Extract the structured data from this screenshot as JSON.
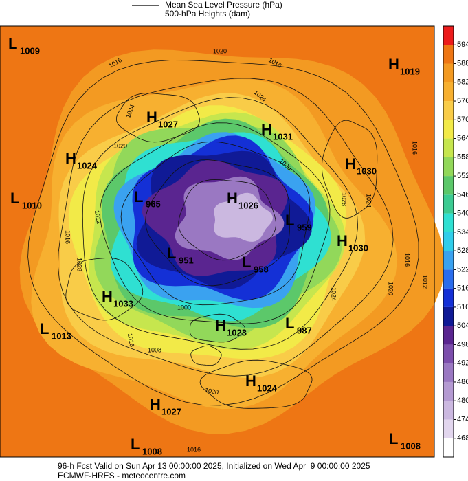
{
  "legend": {
    "pressure": "Mean Sea Level Pressure (hPa)",
    "heights": "500-hPa Heights (dam)"
  },
  "centers": [
    {
      "letter": "H",
      "value": 1019
    },
    {
      "letter": "L",
      "value": 1009
    },
    {
      "letter": "H",
      "value": 1027
    },
    {
      "letter": "H",
      "value": 1031
    },
    {
      "letter": "H",
      "value": 1024
    },
    {
      "letter": "H",
      "value": 1030
    },
    {
      "letter": "L",
      "value": 1010
    },
    {
      "letter": "L",
      "value": 965
    },
    {
      "letter": "H",
      "value": 1026
    },
    {
      "letter": "L",
      "value": 959
    },
    {
      "letter": "H",
      "value": 1030
    },
    {
      "letter": "L",
      "value": 951
    },
    {
      "letter": "L",
      "value": 958
    },
    {
      "letter": "H",
      "value": 1033
    },
    {
      "letter": "L",
      "value": 1013
    },
    {
      "letter": "H",
      "value": 1023
    },
    {
      "letter": "L",
      "value": 987
    },
    {
      "letter": "H",
      "value": 1024
    },
    {
      "letter": "H",
      "value": 1027
    },
    {
      "letter": "L",
      "value": 1008
    },
    {
      "letter": "L",
      "value": 1008
    }
  ],
  "contour_labels": [
    1016,
    1020,
    1016,
    1024,
    1024,
    1020,
    1016,
    1020,
    1028,
    1024,
    1016,
    1012,
    1020,
    1016,
    1012,
    1000,
    1008,
    1016,
    1020,
    1028,
    1024,
    1016
  ],
  "colorbar": {
    "ticks": [
      468,
      474,
      480,
      486,
      492,
      498,
      504,
      510,
      516,
      522,
      528,
      534,
      540,
      546,
      552,
      558,
      564,
      570,
      576,
      582,
      588,
      594
    ],
    "colors": [
      "#ffffff",
      "#e2d6ee",
      "#cbb8e0",
      "#b49ad2",
      "#9a78c2",
      "#7c4eac",
      "#5a2590",
      "#101a96",
      "#1430d6",
      "#2a6cec",
      "#3aa2f0",
      "#30cdea",
      "#2fe0d2",
      "#3ccb92",
      "#5cc86a",
      "#92d85a",
      "#c6e64e",
      "#f2ea48",
      "#f9cc48",
      "#f7b030",
      "#f39a22",
      "#ee7614",
      "#ec1c1c"
    ]
  },
  "footer": {
    "line1": "96-h Fcst Valid on Sun Apr 13 00:00:00 2025, Initialized on Wed Apr  9 00:00:00 2025",
    "line2": "ECMWF-HRES - meteocentre.com"
  }
}
